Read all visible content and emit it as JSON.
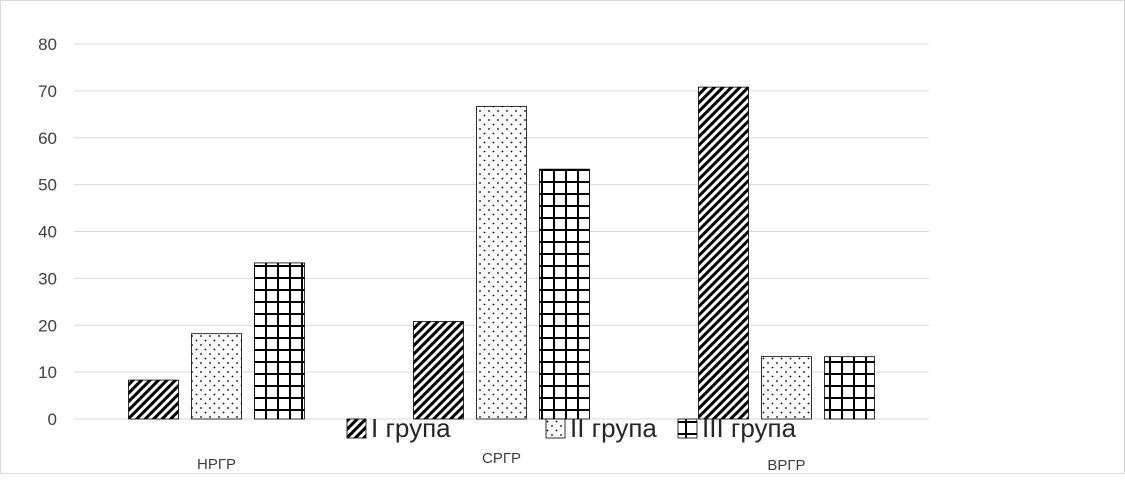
{
  "chart_data": {
    "type": "bar",
    "categories": [
      "НРГР",
      "СРГР",
      "ВРГР"
    ],
    "series": [
      {
        "name": "I група",
        "values": [
          8.3,
          20.8,
          70.8
        ],
        "pattern": "diagonal-hatch"
      },
      {
        "name": "II група",
        "values": [
          18.2,
          66.7,
          13.3
        ],
        "pattern": "dots"
      },
      {
        "name": "III група",
        "values": [
          33.3,
          53.3,
          13.3
        ],
        "pattern": "grid"
      }
    ],
    "yticks": [
      0,
      10,
      20,
      30,
      40,
      50,
      60,
      70,
      80
    ],
    "ylim": [
      0,
      80
    ],
    "grid": true,
    "legend_position": "bottom",
    "colors": {
      "ink": "#000000",
      "gridline": "#d9d9d9",
      "bar_fill": "#ffffff",
      "text": "#404040"
    }
  }
}
